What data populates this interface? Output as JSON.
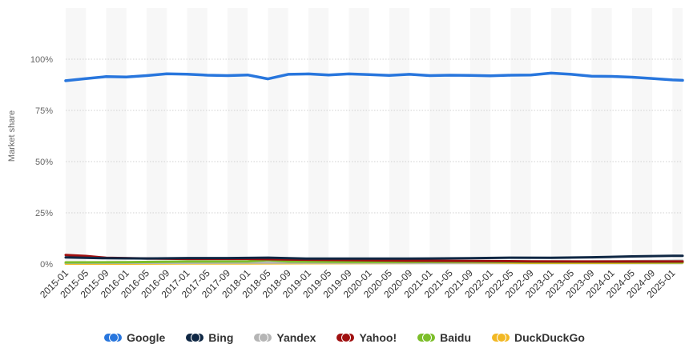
{
  "chart_data": {
    "type": "line",
    "title": "",
    "ylabel": "Market share",
    "xlabel": "",
    "ylim": [
      0,
      125
    ],
    "yticks": [
      0,
      25,
      50,
      75,
      100
    ],
    "ytick_labels": [
      "0%",
      "25%",
      "50%",
      "75%",
      "100%"
    ],
    "x_range": [
      "2015-01",
      "2025-03"
    ],
    "xtick_labels": [
      "2015-01",
      "2015-05",
      "2015-09",
      "2016-01",
      "2016-05",
      "2016-09",
      "2017-01",
      "2017-05",
      "2017-09",
      "2018-01",
      "2018-05",
      "2018-09",
      "2019-01",
      "2019-05",
      "2019-09",
      "2020-01",
      "2020-05",
      "2020-09",
      "2021-01",
      "2021-05",
      "2021-09",
      "2022-01",
      "2022-05",
      "2022-09",
      "2023-01",
      "2023-05",
      "2023-09",
      "2024-01",
      "2024-05",
      "2024-09",
      "2025-01"
    ],
    "legend_position": "bottom",
    "grid": true,
    "series": [
      {
        "name": "Google",
        "color": "#2876dd",
        "x": [
          "2015-01",
          "2015-05",
          "2015-09",
          "2016-01",
          "2016-05",
          "2016-09",
          "2017-01",
          "2017-05",
          "2017-09",
          "2018-01",
          "2018-05",
          "2018-09",
          "2019-01",
          "2019-05",
          "2019-09",
          "2020-01",
          "2020-05",
          "2020-09",
          "2021-01",
          "2021-05",
          "2021-09",
          "2022-01",
          "2022-05",
          "2022-09",
          "2023-01",
          "2023-05",
          "2023-09",
          "2024-01",
          "2024-05",
          "2024-09",
          "2025-01",
          "2025-03"
        ],
        "values": [
          89.5,
          90.5,
          91.5,
          91.3,
          92.0,
          92.9,
          92.7,
          92.2,
          92.0,
          92.3,
          90.4,
          92.6,
          92.8,
          92.3,
          92.8,
          92.5,
          92.1,
          92.6,
          92.0,
          92.2,
          92.1,
          91.9,
          92.2,
          92.3,
          93.2,
          92.6,
          91.7,
          91.6,
          91.2,
          90.6,
          89.9,
          89.7
        ]
      },
      {
        "name": "Bing",
        "color": "#0f2744",
        "x": [
          "2015-01",
          "2015-09",
          "2016-05",
          "2017-01",
          "2017-09",
          "2018-05",
          "2019-01",
          "2019-09",
          "2020-05",
          "2021-01",
          "2021-09",
          "2022-05",
          "2023-01",
          "2023-09",
          "2024-05",
          "2025-01",
          "2025-03"
        ],
        "values": [
          3.2,
          2.8,
          2.7,
          2.9,
          2.9,
          3.1,
          2.6,
          2.6,
          2.6,
          2.7,
          2.8,
          3.1,
          3.0,
          3.3,
          3.7,
          4.0,
          4.0
        ]
      },
      {
        "name": "Yandex",
        "color": "#b5b5b5",
        "x": [
          "2015-01",
          "2016-01",
          "2017-01",
          "2018-01",
          "2019-01",
          "2020-01",
          "2021-01",
          "2022-01",
          "2023-01",
          "2024-01",
          "2025-03"
        ],
        "values": [
          0.6,
          0.6,
          0.6,
          0.7,
          0.7,
          0.7,
          0.6,
          0.8,
          1.1,
          1.3,
          1.6
        ]
      },
      {
        "name": "Yahoo!",
        "color": "#a01010",
        "x": [
          "2015-01",
          "2015-05",
          "2015-09",
          "2016-05",
          "2017-01",
          "2018-01",
          "2018-09",
          "2019-09",
          "2020-09",
          "2021-09",
          "2022-09",
          "2023-09",
          "2025-03"
        ],
        "values": [
          4.4,
          3.9,
          3.0,
          2.7,
          2.5,
          2.5,
          2.2,
          1.9,
          1.6,
          1.5,
          1.3,
          1.2,
          1.2
        ]
      },
      {
        "name": "Baidu",
        "color": "#7cbe2a",
        "x": [
          "2015-01",
          "2016-01",
          "2017-01",
          "2018-01",
          "2018-05",
          "2018-09",
          "2019-09",
          "2020-09",
          "2021-09",
          "2022-09",
          "2023-09",
          "2025-03"
        ],
        "values": [
          0.8,
          0.9,
          1.2,
          1.3,
          1.9,
          1.2,
          1.0,
          1.0,
          1.1,
          0.9,
          0.9,
          0.8
        ]
      },
      {
        "name": "DuckDuckGo",
        "color": "#f2b824",
        "x": [
          "2015-01",
          "2016-01",
          "2017-01",
          "2018-01",
          "2019-01",
          "2020-01",
          "2021-01",
          "2022-01",
          "2023-01",
          "2024-01",
          "2025-03"
        ],
        "values": [
          0.2,
          0.2,
          0.3,
          0.3,
          0.4,
          0.5,
          0.6,
          0.6,
          0.6,
          0.6,
          0.7
        ]
      }
    ]
  },
  "legend": [
    {
      "label": "Google",
      "color": "#2876dd",
      "icon": "legend-dot"
    },
    {
      "label": "Bing",
      "color": "#0f2744",
      "icon": "legend-dot"
    },
    {
      "label": "Yandex",
      "color": "#b5b5b5",
      "icon": "legend-dot"
    },
    {
      "label": "Yahoo!",
      "color": "#a01010",
      "icon": "legend-dot"
    },
    {
      "label": "Baidu",
      "color": "#7cbe2a",
      "icon": "legend-dot"
    },
    {
      "label": "DuckDuckGo",
      "color": "#f2b824",
      "icon": "legend-dot"
    }
  ]
}
